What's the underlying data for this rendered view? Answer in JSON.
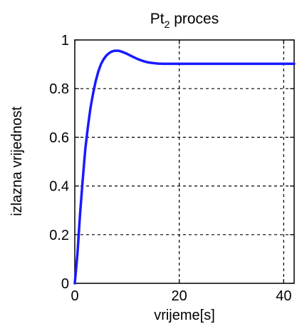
{
  "chart_data": {
    "type": "line",
    "title": "Pt",
    "title_subscript": "2",
    "title_suffix": " proces",
    "xlabel": "vrijeme[s]",
    "ylabel": "izlazna vrijednost",
    "xlim": [
      0,
      42
    ],
    "ylim": [
      0,
      1
    ],
    "xticks": [
      0,
      20,
      40
    ],
    "yticks": [
      0,
      0.2,
      0.4,
      0.6,
      0.8,
      1
    ],
    "xtick_labels": [
      "0",
      "20",
      "40"
    ],
    "ytick_labels": [
      "0",
      "0.2",
      "0.4",
      "0.6",
      "0.8",
      "1"
    ],
    "grid": true,
    "series": [
      {
        "color": "#1a1aff",
        "x": [
          0,
          0.5,
          1,
          1.5,
          2,
          2.5,
          3,
          3.5,
          4,
          4.5,
          5,
          5.5,
          6,
          6.5,
          7,
          7.5,
          8,
          8.5,
          9,
          10,
          11,
          12,
          13,
          14,
          15,
          16,
          17,
          18,
          20,
          25,
          30,
          35,
          40,
          42
        ],
        "y": [
          0,
          0.12,
          0.28,
          0.42,
          0.55,
          0.64,
          0.72,
          0.78,
          0.83,
          0.87,
          0.9,
          0.92,
          0.935,
          0.945,
          0.952,
          0.955,
          0.956,
          0.955,
          0.952,
          0.943,
          0.932,
          0.922,
          0.914,
          0.908,
          0.905,
          0.903,
          0.902,
          0.902,
          0.902,
          0.902,
          0.902,
          0.902,
          0.902,
          0.902
        ]
      }
    ]
  }
}
